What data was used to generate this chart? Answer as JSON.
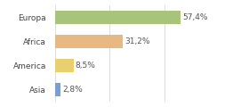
{
  "categories": [
    "Europa",
    "Africa",
    "America",
    "Asia"
  ],
  "values": [
    57.4,
    31.2,
    8.5,
    2.8
  ],
  "labels": [
    "57,4%",
    "31,2%",
    "8,5%",
    "2,8%"
  ],
  "bar_colors": [
    "#a8c47a",
    "#e8b882",
    "#e8d070",
    "#7b9fd4"
  ],
  "background_color": "#ffffff",
  "xlim": [
    0,
    75
  ],
  "label_fontsize": 6.5,
  "category_fontsize": 6.5,
  "bar_height": 0.55
}
